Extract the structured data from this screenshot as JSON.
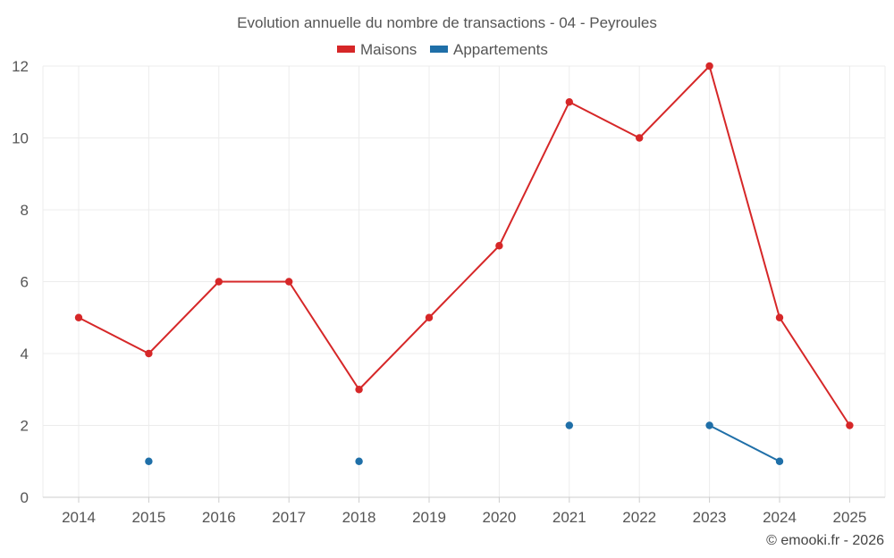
{
  "chart_data": {
    "type": "line",
    "title": "Evolution annuelle du nombre de transactions - 04 - Peyroules",
    "categories": [
      "2014",
      "2015",
      "2016",
      "2017",
      "2018",
      "2019",
      "2020",
      "2021",
      "2022",
      "2023",
      "2024",
      "2025"
    ],
    "series": [
      {
        "name": "Maisons",
        "color": "#d62728",
        "values": [
          5,
          4,
          6,
          6,
          3,
          5,
          7,
          11,
          10,
          12,
          5,
          2
        ]
      },
      {
        "name": "Appartements",
        "color": "#1f6fa8",
        "values": [
          null,
          1,
          null,
          null,
          1,
          null,
          null,
          2,
          null,
          2,
          1,
          null
        ]
      }
    ],
    "ylim": [
      0,
      12
    ],
    "yticks": [
      0,
      2,
      4,
      6,
      8,
      10,
      12
    ],
    "xlabel": "",
    "ylabel": "",
    "legend_position": "top-center",
    "grid": true
  },
  "credit": "© emooki.fr - 2026"
}
